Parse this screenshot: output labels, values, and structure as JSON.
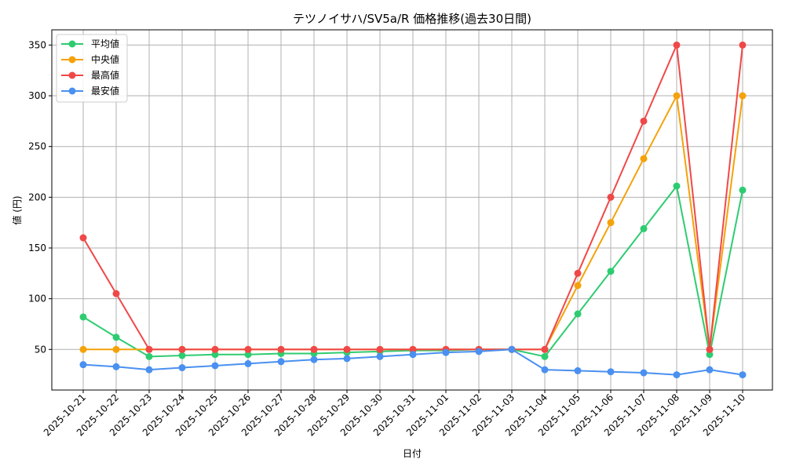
{
  "chart_data": {
    "type": "line",
    "title": "テツノイサハ/SV5a/R 価格推移(過去30日間)",
    "xlabel": "日付",
    "ylabel": "値 (円)",
    "x": [
      "2025-10-21",
      "2025-10-22",
      "2025-10-23",
      "2025-10-24",
      "2025-10-25",
      "2025-10-26",
      "2025-10-27",
      "2025-10-28",
      "2025-10-29",
      "2025-10-30",
      "2025-10-31",
      "2025-11-01",
      "2025-11-02",
      "2025-11-03",
      "2025-11-04",
      "2025-11-05",
      "2025-11-06",
      "2025-11-07",
      "2025-11-08",
      "2025-11-09",
      "2025-11-10"
    ],
    "ylim": [
      10,
      365
    ],
    "yticks": [
      50,
      100,
      150,
      200,
      250,
      300,
      350
    ],
    "grid": true,
    "legend_position": "top-left",
    "series": [
      {
        "name": "平均値",
        "color": "#2ecc71",
        "values": [
          82,
          62,
          43,
          44,
          45,
          45,
          46,
          46,
          47,
          48,
          49,
          49,
          50,
          50,
          43,
          85,
          127,
          169,
          211,
          45,
          207
        ]
      },
      {
        "name": "中央値",
        "color": "#f5a20a",
        "values": [
          50,
          50,
          50,
          50,
          50,
          50,
          50,
          50,
          50,
          50,
          50,
          50,
          50,
          50,
          50,
          113,
          175,
          238,
          300,
          50,
          300
        ]
      },
      {
        "name": "最高値",
        "color": "#f04848",
        "values": [
          160,
          105,
          50,
          50,
          50,
          50,
          50,
          50,
          50,
          50,
          50,
          50,
          50,
          50,
          50,
          125,
          200,
          275,
          350,
          50,
          350
        ]
      },
      {
        "name": "最安値",
        "color": "#4a90f0",
        "values": [
          35,
          33,
          30,
          32,
          34,
          36,
          38,
          40,
          41,
          43,
          45,
          47,
          48,
          50,
          30,
          29,
          28,
          27,
          25,
          30,
          25
        ]
      }
    ]
  }
}
